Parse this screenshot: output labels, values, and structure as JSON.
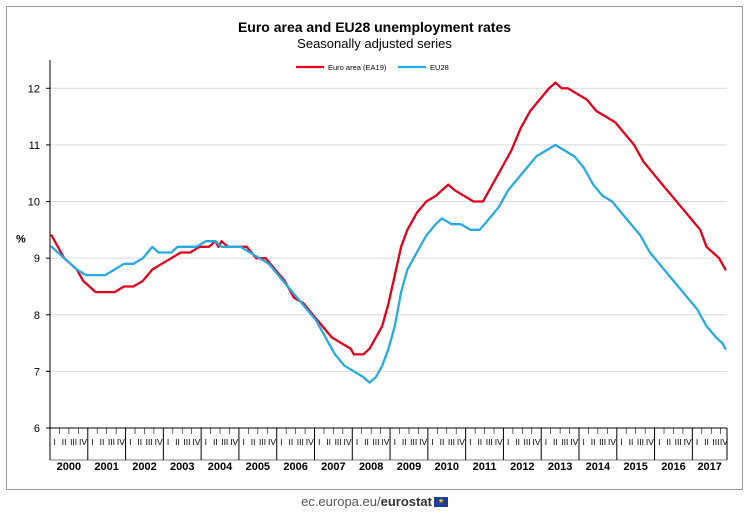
{
  "chart_data": {
    "type": "line",
    "title": "Euro area and EU28 unemployment rates",
    "subtitle": "Seasonally adjusted series",
    "ylabel": "%",
    "ylim": [
      6,
      12.5
    ],
    "yticks": [
      6,
      7,
      8,
      9,
      10,
      11,
      12
    ],
    "grid": true,
    "legend_position": "top-center",
    "years": [
      "2000",
      "2001",
      "2002",
      "2003",
      "2004",
      "2005",
      "2006",
      "2007",
      "2008",
      "2009",
      "2010",
      "2011",
      "2012",
      "2013",
      "2014",
      "2015",
      "2016",
      "2017"
    ],
    "quarter_labels": [
      "I",
      "II",
      "III",
      "IV"
    ],
    "x_frequency": "monthly",
    "x_start": "2000-01",
    "x_end": "2017-11",
    "series": [
      {
        "name": "Euro area (EA19)",
        "color": "#e3001b",
        "points": [
          [
            "2000-01",
            9.4
          ],
          [
            "2000-03",
            9.2
          ],
          [
            "2000-05",
            9.0
          ],
          [
            "2000-07",
            8.9
          ],
          [
            "2000-09",
            8.8
          ],
          [
            "2000-11",
            8.6
          ],
          [
            "2001-01",
            8.5
          ],
          [
            "2001-03",
            8.4
          ],
          [
            "2001-06",
            8.4
          ],
          [
            "2001-09",
            8.4
          ],
          [
            "2001-12",
            8.5
          ],
          [
            "2002-03",
            8.5
          ],
          [
            "2002-06",
            8.6
          ],
          [
            "2002-09",
            8.8
          ],
          [
            "2002-12",
            8.9
          ],
          [
            "2003-03",
            9.0
          ],
          [
            "2003-06",
            9.1
          ],
          [
            "2003-09",
            9.1
          ],
          [
            "2003-12",
            9.2
          ],
          [
            "2004-03",
            9.2
          ],
          [
            "2004-05",
            9.3
          ],
          [
            "2004-06",
            9.2
          ],
          [
            "2004-07",
            9.3
          ],
          [
            "2004-09",
            9.2
          ],
          [
            "2004-12",
            9.2
          ],
          [
            "2005-03",
            9.2
          ],
          [
            "2005-06",
            9.0
          ],
          [
            "2005-09",
            9.0
          ],
          [
            "2005-12",
            8.8
          ],
          [
            "2006-03",
            8.6
          ],
          [
            "2006-06",
            8.3
          ],
          [
            "2006-09",
            8.2
          ],
          [
            "2006-12",
            8.0
          ],
          [
            "2007-03",
            7.8
          ],
          [
            "2007-06",
            7.6
          ],
          [
            "2007-09",
            7.5
          ],
          [
            "2007-12",
            7.4
          ],
          [
            "2008-01",
            7.3
          ],
          [
            "2008-04",
            7.3
          ],
          [
            "2008-06",
            7.4
          ],
          [
            "2008-08",
            7.6
          ],
          [
            "2008-10",
            7.8
          ],
          [
            "2008-12",
            8.2
          ],
          [
            "2009-02",
            8.7
          ],
          [
            "2009-04",
            9.2
          ],
          [
            "2009-06",
            9.5
          ],
          [
            "2009-09",
            9.8
          ],
          [
            "2009-12",
            10.0
          ],
          [
            "2010-03",
            10.1
          ],
          [
            "2010-05",
            10.2
          ],
          [
            "2010-07",
            10.3
          ],
          [
            "2010-09",
            10.2
          ],
          [
            "2010-12",
            10.1
          ],
          [
            "2011-03",
            10.0
          ],
          [
            "2011-06",
            10.0
          ],
          [
            "2011-08",
            10.2
          ],
          [
            "2011-10",
            10.4
          ],
          [
            "2011-12",
            10.6
          ],
          [
            "2012-03",
            10.9
          ],
          [
            "2012-06",
            11.3
          ],
          [
            "2012-09",
            11.6
          ],
          [
            "2012-12",
            11.8
          ],
          [
            "2013-03",
            12.0
          ],
          [
            "2013-05",
            12.1
          ],
          [
            "2013-07",
            12.0
          ],
          [
            "2013-09",
            12.0
          ],
          [
            "2013-12",
            11.9
          ],
          [
            "2014-03",
            11.8
          ],
          [
            "2014-06",
            11.6
          ],
          [
            "2014-09",
            11.5
          ],
          [
            "2014-12",
            11.4
          ],
          [
            "2015-03",
            11.2
          ],
          [
            "2015-06",
            11.0
          ],
          [
            "2015-09",
            10.7
          ],
          [
            "2015-12",
            10.5
          ],
          [
            "2016-03",
            10.3
          ],
          [
            "2016-06",
            10.1
          ],
          [
            "2016-09",
            9.9
          ],
          [
            "2016-12",
            9.7
          ],
          [
            "2017-03",
            9.5
          ],
          [
            "2017-05",
            9.2
          ],
          [
            "2017-07",
            9.1
          ],
          [
            "2017-09",
            9.0
          ],
          [
            "2017-11",
            8.8
          ]
        ]
      },
      {
        "name": "EU28",
        "color": "#27aae1",
        "points": [
          [
            "2000-01",
            9.2
          ],
          [
            "2000-03",
            9.1
          ],
          [
            "2000-05",
            9.0
          ],
          [
            "2000-07",
            8.9
          ],
          [
            "2000-09",
            8.8
          ],
          [
            "2000-12",
            8.7
          ],
          [
            "2001-03",
            8.7
          ],
          [
            "2001-06",
            8.7
          ],
          [
            "2001-09",
            8.8
          ],
          [
            "2001-12",
            8.9
          ],
          [
            "2002-03",
            8.9
          ],
          [
            "2002-06",
            9.0
          ],
          [
            "2002-09",
            9.2
          ],
          [
            "2002-11",
            9.1
          ],
          [
            "2003-03",
            9.1
          ],
          [
            "2003-05",
            9.2
          ],
          [
            "2003-08",
            9.2
          ],
          [
            "2003-11",
            9.2
          ],
          [
            "2004-02",
            9.3
          ],
          [
            "2004-05",
            9.3
          ],
          [
            "2004-07",
            9.2
          ],
          [
            "2004-10",
            9.2
          ],
          [
            "2005-01",
            9.2
          ],
          [
            "2005-04",
            9.1
          ],
          [
            "2005-07",
            9.0
          ],
          [
            "2005-10",
            8.9
          ],
          [
            "2006-01",
            8.7
          ],
          [
            "2006-04",
            8.5
          ],
          [
            "2006-07",
            8.3
          ],
          [
            "2006-10",
            8.1
          ],
          [
            "2007-01",
            7.9
          ],
          [
            "2007-04",
            7.6
          ],
          [
            "2007-07",
            7.3
          ],
          [
            "2007-10",
            7.1
          ],
          [
            "2008-01",
            7.0
          ],
          [
            "2008-04",
            6.9
          ],
          [
            "2008-06",
            6.8
          ],
          [
            "2008-08",
            6.9
          ],
          [
            "2008-10",
            7.1
          ],
          [
            "2008-12",
            7.4
          ],
          [
            "2009-02",
            7.8
          ],
          [
            "2009-04",
            8.4
          ],
          [
            "2009-06",
            8.8
          ],
          [
            "2009-09",
            9.1
          ],
          [
            "2009-12",
            9.4
          ],
          [
            "2010-03",
            9.6
          ],
          [
            "2010-05",
            9.7
          ],
          [
            "2010-08",
            9.6
          ],
          [
            "2010-11",
            9.6
          ],
          [
            "2011-02",
            9.5
          ],
          [
            "2011-05",
            9.5
          ],
          [
            "2011-08",
            9.7
          ],
          [
            "2011-11",
            9.9
          ],
          [
            "2012-02",
            10.2
          ],
          [
            "2012-05",
            10.4
          ],
          [
            "2012-08",
            10.6
          ],
          [
            "2012-11",
            10.8
          ],
          [
            "2013-02",
            10.9
          ],
          [
            "2013-05",
            11.0
          ],
          [
            "2013-08",
            10.9
          ],
          [
            "2013-11",
            10.8
          ],
          [
            "2014-02",
            10.6
          ],
          [
            "2014-05",
            10.3
          ],
          [
            "2014-08",
            10.1
          ],
          [
            "2014-11",
            10.0
          ],
          [
            "2015-02",
            9.8
          ],
          [
            "2015-05",
            9.6
          ],
          [
            "2015-08",
            9.4
          ],
          [
            "2015-11",
            9.1
          ],
          [
            "2016-02",
            8.9
          ],
          [
            "2016-05",
            8.7
          ],
          [
            "2016-08",
            8.5
          ],
          [
            "2016-11",
            8.3
          ],
          [
            "2017-02",
            8.1
          ],
          [
            "2017-05",
            7.8
          ],
          [
            "2017-08",
            7.6
          ],
          [
            "2017-10",
            7.5
          ],
          [
            "2017-11",
            7.4
          ]
        ]
      }
    ]
  },
  "footer": {
    "site_prefix": "ec.europa.eu/",
    "site_brand": "eurostat",
    "flag_icon": "eu-flag-icon"
  }
}
